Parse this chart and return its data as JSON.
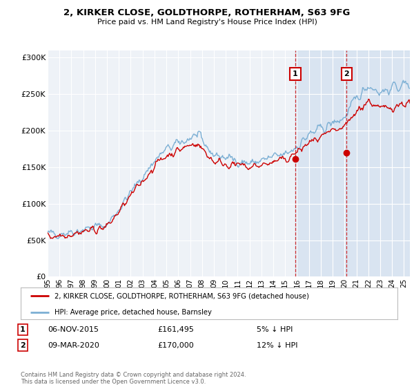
{
  "title": "2, KIRKER CLOSE, GOLDTHORPE, ROTHERHAM, S63 9FG",
  "subtitle": "Price paid vs. HM Land Registry's House Price Index (HPI)",
  "ylabel_ticks": [
    "£0",
    "£50K",
    "£100K",
    "£150K",
    "£200K",
    "£250K",
    "£300K"
  ],
  "ytick_vals": [
    0,
    50000,
    100000,
    150000,
    200000,
    250000,
    300000
  ],
  "ylim": [
    0,
    310000
  ],
  "xlim_start": 1995.0,
  "xlim_end": 2025.5,
  "hpi_color": "#7bafd4",
  "price_color": "#cc0000",
  "marker1_date": 2015.85,
  "marker1_price": 161495,
  "marker2_date": 2020.18,
  "marker2_price": 170000,
  "vline1_x": 2015.85,
  "vline2_x": 2020.18,
  "legend_label1": "2, KIRKER CLOSE, GOLDTHORPE, ROTHERHAM, S63 9FG (detached house)",
  "legend_label2": "HPI: Average price, detached house, Barnsley",
  "annotation1_label": "1",
  "annotation2_label": "2",
  "note1_num": "1",
  "note1_date": "06-NOV-2015",
  "note1_price": "£161,495",
  "note1_pct": "5% ↓ HPI",
  "note2_num": "2",
  "note2_date": "09-MAR-2020",
  "note2_price": "£170,000",
  "note2_pct": "12% ↓ HPI",
  "footer": "Contains HM Land Registry data © Crown copyright and database right 2024.\nThis data is licensed under the Open Government Licence v3.0.",
  "bg_color": "#ffffff",
  "plot_bg_color": "#eef2f7",
  "shade_color": "#ccdcee",
  "grid_color": "#ffffff",
  "xtick_years": [
    1995,
    1996,
    1997,
    1998,
    1999,
    2000,
    2001,
    2002,
    2003,
    2004,
    2005,
    2006,
    2007,
    2008,
    2009,
    2010,
    2011,
    2012,
    2013,
    2014,
    2015,
    2016,
    2017,
    2018,
    2019,
    2020,
    2021,
    2022,
    2023,
    2024,
    2025
  ]
}
